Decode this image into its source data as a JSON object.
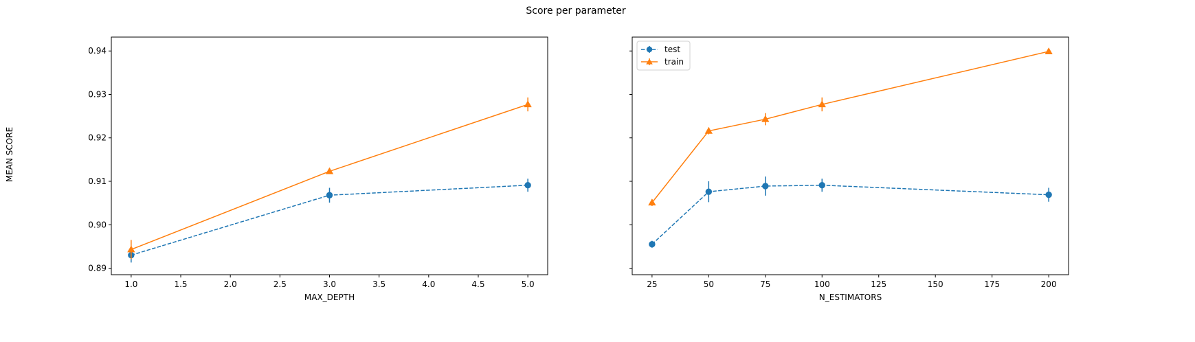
{
  "figure": {
    "title": "Score per parameter",
    "ylabel": "MEAN SCORE"
  },
  "colors": {
    "test": "#1f77b4",
    "train": "#ff7f0e"
  },
  "chart_data": [
    {
      "type": "line",
      "xlabel": "MAX_DEPTH",
      "ylabel": "MEAN SCORE",
      "xlim": [
        0.8,
        5.2
      ],
      "ylim": [
        0.8885,
        0.9432
      ],
      "xticks": [
        1.0,
        1.5,
        2.0,
        2.5,
        3.0,
        3.5,
        4.0,
        4.5,
        5.0
      ],
      "xtick_labels": [
        "1.0",
        "1.5",
        "2.0",
        "2.5",
        "3.0",
        "3.5",
        "4.0",
        "4.5",
        "5.0"
      ],
      "yticks": [
        0.89,
        0.9,
        0.91,
        0.92,
        0.93,
        0.94
      ],
      "ytick_labels": [
        "0.89",
        "0.90",
        "0.91",
        "0.92",
        "0.93",
        "0.94"
      ],
      "legend": false,
      "grid": false,
      "x": [
        1,
        3,
        5
      ],
      "series": [
        {
          "name": "test",
          "marker": "circle",
          "dashed": true,
          "values": [
            0.893,
            0.9068,
            0.9091
          ],
          "errors": [
            0.0017,
            0.0017,
            0.0015
          ]
        },
        {
          "name": "train",
          "marker": "triangle",
          "dashed": false,
          "values": [
            0.8943,
            0.9123,
            0.9277
          ],
          "errors": [
            0.0022,
            0.0005,
            0.0016
          ]
        }
      ]
    },
    {
      "type": "line",
      "xlabel": "N_ESTIMATORS",
      "ylabel": "",
      "xlim": [
        16.25,
        208.75
      ],
      "ylim": [
        0.8885,
        0.9432
      ],
      "xticks": [
        25,
        50,
        75,
        100,
        125,
        150,
        175,
        200
      ],
      "xtick_labels": [
        "25",
        "50",
        "75",
        "100",
        "125",
        "150",
        "175",
        "200"
      ],
      "yticks": [
        0.89,
        0.9,
        0.91,
        0.92,
        0.93,
        0.94
      ],
      "ytick_labels": [],
      "legend": true,
      "legend_loc": "upper left",
      "grid": false,
      "x": [
        25,
        50,
        75,
        100,
        200
      ],
      "series": [
        {
          "name": "test",
          "marker": "circle",
          "dashed": true,
          "values": [
            0.8955,
            0.9076,
            0.9089,
            0.9091,
            0.9069
          ],
          "errors": [
            0.0008,
            0.0024,
            0.0022,
            0.0015,
            0.0016
          ]
        },
        {
          "name": "train",
          "marker": "triangle",
          "dashed": false,
          "values": [
            0.9051,
            0.9216,
            0.9243,
            0.9277,
            0.9399
          ],
          "errors": [
            0.0008,
            0.0008,
            0.0014,
            0.0016,
            0.0004
          ]
        }
      ]
    }
  ]
}
